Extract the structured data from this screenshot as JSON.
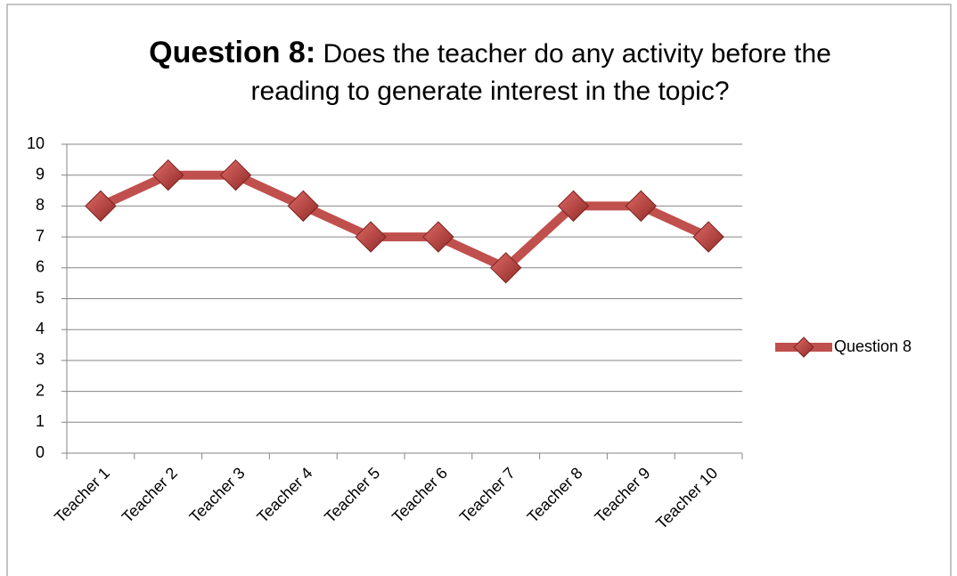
{
  "chart_data": {
    "type": "line",
    "title": [
      "Question 8:",
      "Does the teacher do any activity before the reading to generate interest in the topic?"
    ],
    "categories": [
      "Teacher 1",
      "Teacher 2",
      "Teacher 3",
      "Teacher 4",
      "Teacher 5",
      "Teacher 6",
      "Teacher 7",
      "Teacher 8",
      "Teacher 9",
      "Teacher 10"
    ],
    "series": [
      {
        "name": "Question 8",
        "color": "#c0504d",
        "values": [
          8,
          9,
          9,
          8,
          7,
          7,
          6,
          8,
          8,
          7
        ]
      }
    ],
    "ylim": [
      0,
      10
    ],
    "yticks": [
      0,
      1,
      2,
      3,
      4,
      5,
      6,
      7,
      8,
      9,
      10
    ],
    "grid": true,
    "legend": "right"
  }
}
